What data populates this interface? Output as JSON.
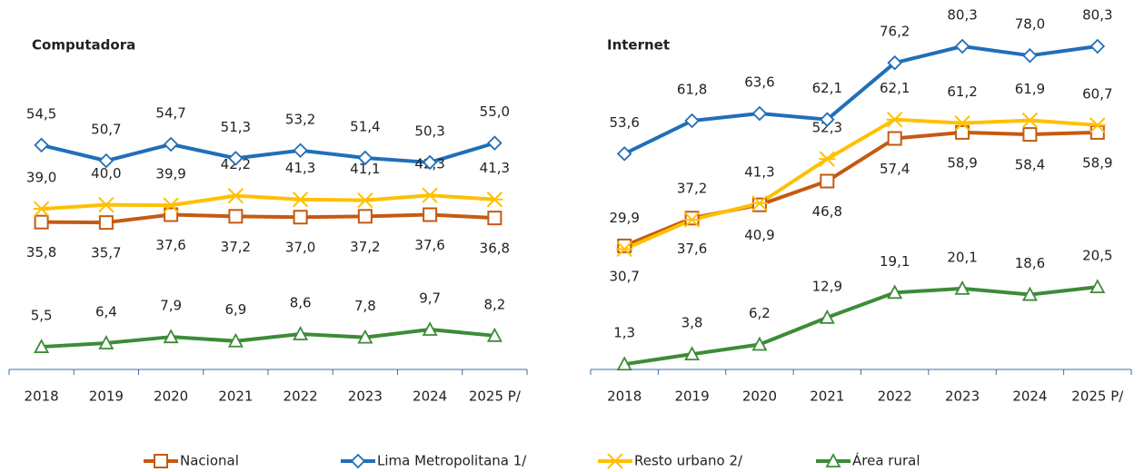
{
  "chart_data": [
    {
      "type": "line",
      "title": "Computadora",
      "categories": [
        "2018",
        "2019",
        "2020",
        "2021",
        "2022",
        "2023",
        "2024",
        "2025 P/"
      ],
      "ylim": [
        0,
        88
      ],
      "series": [
        {
          "name": "Nacional",
          "color": "#c55a11",
          "values": [
            35.8,
            35.7,
            37.6,
            37.2,
            37.0,
            37.2,
            37.6,
            36.8
          ],
          "value_labels": [
            "35,8",
            "35,7",
            "37,6",
            "37,2",
            "37,0",
            "37,2",
            "37,6",
            "36,8"
          ]
        },
        {
          "name": "Lima Metropolitana 1/",
          "color": "#1f6fb8",
          "values": [
            54.5,
            50.7,
            54.7,
            51.3,
            53.2,
            51.4,
            50.3,
            55.0
          ],
          "value_labels": [
            "54,5",
            "50,7",
            "54,7",
            "51,3",
            "53,2",
            "51,4",
            "50,3",
            "55,0"
          ]
        },
        {
          "name": "Resto urbano 2/",
          "color": "#ffc000",
          "values": [
            39.0,
            40.0,
            39.9,
            42.2,
            41.3,
            41.1,
            42.3,
            41.3
          ],
          "value_labels": [
            "39,0",
            "40,0",
            "39,9",
            "42,2",
            "41,3",
            "41,1",
            "42,3",
            "41,3"
          ]
        },
        {
          "name": "Área rural",
          "color": "#3d8b37",
          "values": [
            5.5,
            6.4,
            7.9,
            6.9,
            8.6,
            7.8,
            9.7,
            8.2
          ],
          "value_labels": [
            "5,5",
            "6,4",
            "7,9",
            "6,9",
            "8,6",
            "7,8",
            "9,7",
            "8,2"
          ]
        }
      ]
    },
    {
      "type": "line",
      "title": "Internet",
      "categories": [
        "2018",
        "2019",
        "2020",
        "2021",
        "2022",
        "2023",
        "2024",
        "2025 P/"
      ],
      "ylim": [
        0,
        90
      ],
      "series": [
        {
          "name": "Nacional",
          "color": "#c55a11",
          "values": [
            30.7,
            37.6,
            40.9,
            46.8,
            57.4,
            58.9,
            58.4,
            58.9
          ],
          "value_labels": [
            "30,7",
            "37,6",
            "40,9",
            "46,8",
            "57,4",
            "58,9",
            "58,4",
            "58,9"
          ]
        },
        {
          "name": "Lima Metropolitana 1/",
          "color": "#1f6fb8",
          "values": [
            53.6,
            61.8,
            63.6,
            62.1,
            76.2,
            80.3,
            78.0,
            80.3
          ],
          "value_labels": [
            "53,6",
            "61,8",
            "63,6",
            "62,1",
            "76,2",
            "80,3",
            "78,0",
            "80,3"
          ]
        },
        {
          "name": "Resto urbano 2/",
          "color": "#ffc000",
          "values": [
            29.9,
            37.2,
            41.3,
            52.3,
            62.1,
            61.2,
            61.9,
            60.7
          ],
          "value_labels": [
            "29,9",
            "37,2",
            "41,3",
            "52,3",
            "62,1",
            "61,2",
            "61,9",
            "60,7"
          ]
        },
        {
          "name": "Área rural",
          "color": "#3d8b37",
          "values": [
            1.3,
            3.8,
            6.2,
            12.9,
            19.1,
            20.1,
            18.6,
            20.5
          ],
          "value_labels": [
            "1,3",
            "3,8",
            "6,2",
            "12,9",
            "19,1",
            "20,1",
            "18,6",
            "20,5"
          ]
        }
      ]
    }
  ]
}
